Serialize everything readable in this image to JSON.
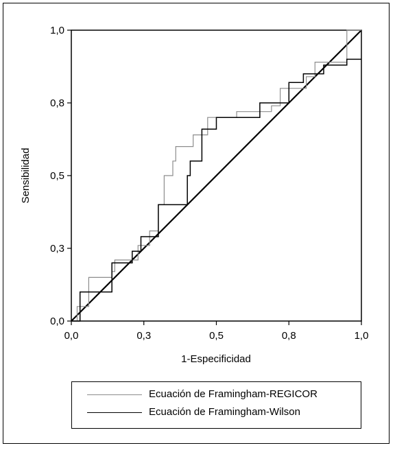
{
  "chart_data": {
    "type": "line",
    "xlabel": "1-Especificidad",
    "ylabel": "Sensibilidad",
    "xlim": [
      0,
      1
    ],
    "ylim": [
      0,
      1
    ],
    "x_ticks": [
      "0,0",
      "0,3",
      "0,5",
      "0,8",
      "1,0"
    ],
    "y_ticks": [
      "0,0",
      "0,3",
      "0,5",
      "0,8",
      "1,0"
    ],
    "grid": false,
    "legend_position": "bottom",
    "reference_line": {
      "from": [
        0,
        0
      ],
      "to": [
        1,
        1
      ],
      "color": "#000000"
    },
    "series": [
      {
        "name": "Ecuación de Framingham-REGICOR",
        "color": "#8c8c8c",
        "x": [
          0.0,
          0.02,
          0.02,
          0.06,
          0.06,
          0.07,
          0.07,
          0.14,
          0.14,
          0.15,
          0.15,
          0.21,
          0.21,
          0.23,
          0.23,
          0.27,
          0.27,
          0.3,
          0.3,
          0.32,
          0.32,
          0.35,
          0.35,
          0.36,
          0.36,
          0.42,
          0.42,
          0.47,
          0.47,
          0.5,
          0.5,
          0.57,
          0.57,
          0.64,
          0.64,
          0.69,
          0.69,
          0.72,
          0.72,
          0.77,
          0.77,
          0.81,
          0.81,
          0.84,
          0.84,
          0.89,
          0.89,
          0.95,
          0.95,
          0.97,
          0.97,
          1.0
        ],
        "y": [
          0.0,
          0.0,
          0.05,
          0.05,
          0.15,
          0.15,
          0.15,
          0.15,
          0.17,
          0.17,
          0.21,
          0.21,
          0.21,
          0.21,
          0.26,
          0.26,
          0.31,
          0.31,
          0.4,
          0.4,
          0.5,
          0.5,
          0.55,
          0.55,
          0.6,
          0.6,
          0.64,
          0.64,
          0.7,
          0.7,
          0.7,
          0.7,
          0.72,
          0.72,
          0.72,
          0.72,
          0.74,
          0.74,
          0.8,
          0.8,
          0.8,
          0.8,
          0.84,
          0.84,
          0.89,
          0.89,
          0.89,
          0.89,
          1.0,
          1.0,
          1.0,
          1.0
        ]
      },
      {
        "name": "Ecuación de Framingham-Wilson",
        "color": "#000000",
        "x": [
          0.0,
          0.03,
          0.03,
          0.06,
          0.06,
          0.14,
          0.14,
          0.19,
          0.19,
          0.21,
          0.21,
          0.24,
          0.24,
          0.3,
          0.3,
          0.4,
          0.4,
          0.41,
          0.41,
          0.45,
          0.45,
          0.5,
          0.5,
          0.58,
          0.58,
          0.65,
          0.65,
          0.69,
          0.69,
          0.75,
          0.75,
          0.8,
          0.8,
          0.84,
          0.84,
          0.87,
          0.87,
          0.92,
          0.92,
          0.95,
          0.95,
          1.0
        ],
        "y": [
          0.0,
          0.0,
          0.1,
          0.1,
          0.1,
          0.1,
          0.2,
          0.2,
          0.2,
          0.2,
          0.24,
          0.24,
          0.29,
          0.29,
          0.4,
          0.4,
          0.5,
          0.5,
          0.55,
          0.55,
          0.66,
          0.66,
          0.7,
          0.7,
          0.7,
          0.7,
          0.75,
          0.75,
          0.75,
          0.75,
          0.82,
          0.82,
          0.85,
          0.85,
          0.85,
          0.85,
          0.88,
          0.88,
          0.88,
          0.88,
          0.9,
          0.9
        ]
      }
    ]
  }
}
